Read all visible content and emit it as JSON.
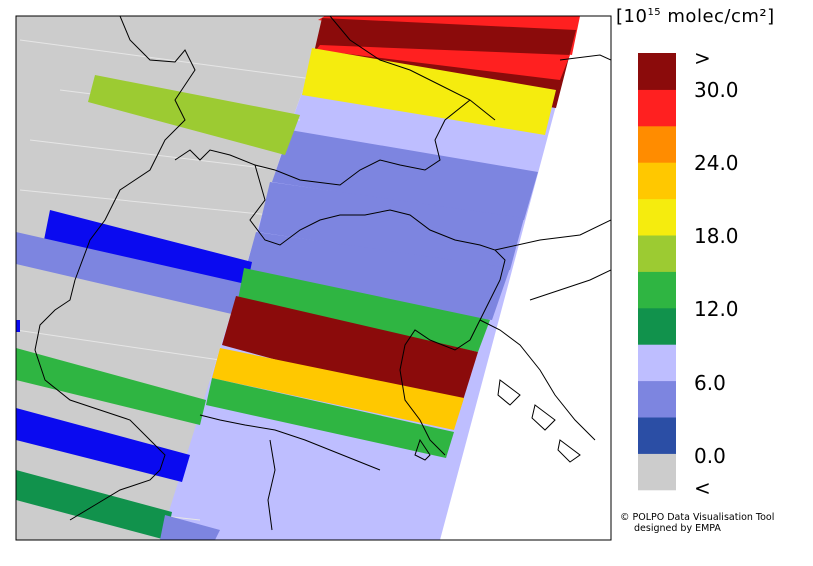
{
  "legend": {
    "units_prefix": "[10",
    "units_exponent": "15",
    "units_suffix": " molec/cm²]",
    "colors": [
      "#cccccc",
      "#2b4ea5",
      "#7d85e0",
      "#bebeff",
      "#11924c",
      "#2fb542",
      "#9ccb32",
      "#f5ec0e",
      "#ffc800",
      "#ff8c00",
      "#ff2020",
      "#8b0b0b"
    ],
    "labels": [
      ">",
      "30.0",
      "24.0",
      "18.0",
      "12.0",
      "6.0",
      "0.0",
      "<"
    ]
  },
  "credit": {
    "line1": "© POLPO Data Visualisation Tool",
    "line2": "designed by EMPA"
  },
  "swaths": [
    {
      "value_class": "above_30",
      "color": "#8b0b0b"
    },
    {
      "value_class": "30",
      "color": "#ff2020"
    },
    {
      "value_class": "18-21",
      "color": "#f5ec0e"
    },
    {
      "value_class": "15-18",
      "color": "#9ccb32"
    },
    {
      "value_class": "12-15",
      "color": "#2fb542"
    },
    {
      "value_class": "9-12",
      "color": "#11924c"
    },
    {
      "value_class": "6-9",
      "color": "#bebeff"
    },
    {
      "value_class": "3-6",
      "color": "#7d85e0"
    },
    {
      "value_class": "0-3",
      "color": "#0a0af0"
    },
    {
      "value_class": "below_0",
      "color": "#cccccc"
    },
    {
      "value_class": "21-24",
      "color": "#ffc800"
    }
  ]
}
